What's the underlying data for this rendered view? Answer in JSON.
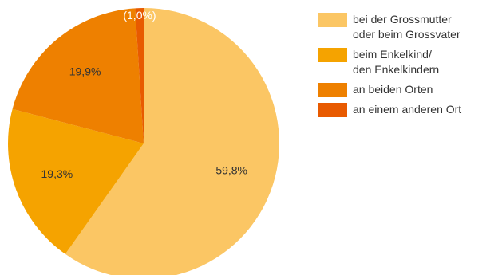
{
  "chart_data": {
    "type": "pie",
    "title": "",
    "categories": [
      "bei der Grossmutter oder beim Grossvater",
      "beim Enkelkind/ den Enkelkindern",
      "an beiden Orten",
      "an einem anderen Ort"
    ],
    "legend_lines": [
      [
        "bei der Grossmutter",
        "oder beim Grossvater"
      ],
      [
        "beim Enkelkind/",
        "den Enkelkindern"
      ],
      [
        "an beiden Orten"
      ],
      [
        "an einem anderen Ort"
      ]
    ],
    "values": [
      59.8,
      19.3,
      19.9,
      1.0
    ],
    "data_labels": [
      "59,8%",
      "19,3%",
      "19,9%",
      "(1,0%)"
    ],
    "colors": [
      "#FBC664",
      "#F5A300",
      "#EE8000",
      "#E85A00"
    ],
    "legend_position": "right"
  }
}
